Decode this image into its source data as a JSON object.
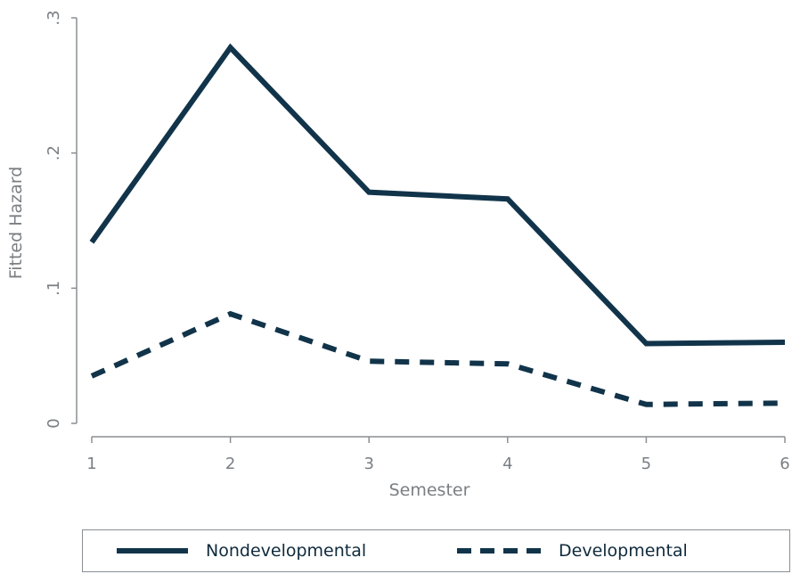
{
  "chart_data": {
    "type": "line",
    "x": [
      1,
      2,
      3,
      4,
      5,
      6
    ],
    "series": [
      {
        "name": "Nondevelopmental",
        "values": [
          0.134,
          0.278,
          0.171,
          0.166,
          0.059,
          0.06
        ],
        "style": "solid",
        "color": "#11344a"
      },
      {
        "name": "Developmental",
        "values": [
          0.035,
          0.081,
          0.046,
          0.044,
          0.014,
          0.015
        ],
        "style": "dashed",
        "color": "#11344a"
      }
    ],
    "xlabel": "Semester",
    "ylabel": "Fitted Hazard",
    "xticks": [
      "1",
      "2",
      "3",
      "4",
      "5",
      "6"
    ],
    "yticks": [
      "0",
      ".1",
      ".2",
      ".3"
    ],
    "xlim": [
      1,
      6
    ],
    "ylim": [
      0,
      0.3
    ],
    "grid": false,
    "legend": "bottom"
  }
}
